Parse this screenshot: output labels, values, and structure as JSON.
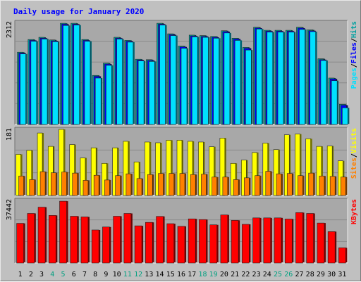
{
  "chart_data": {
    "type": "bar",
    "title": "Daily usage for January 2020",
    "colors": {
      "background": "#c0c0c0",
      "plot_background": "#a8a8a8",
      "hits": "#00a0a0",
      "files": "#0000ff",
      "pages": "#00e0ff",
      "visits": "#ffff00",
      "sites": "#ff8000",
      "kbytes": "#ff0000",
      "title": "#0000ff",
      "weekend_day": "#00a080"
    },
    "categories": [
      "1",
      "2",
      "3",
      "4",
      "5",
      "6",
      "7",
      "8",
      "9",
      "10",
      "11",
      "12",
      "13",
      "14",
      "15",
      "16",
      "17",
      "18",
      "19",
      "20",
      "21",
      "22",
      "23",
      "24",
      "25",
      "26",
      "27",
      "28",
      "29",
      "30",
      "31"
    ],
    "weekend_days": [
      "4",
      "5",
      "11",
      "12",
      "18",
      "19",
      "25",
      "26"
    ],
    "panels": [
      {
        "id": "hits_files_pages",
        "max_label": "2312",
        "ymax": 2312,
        "legend": [
          {
            "text": "Pages",
            "color": "#00e0ff"
          },
          {
            "text": "/",
            "color": "#000000"
          },
          {
            "text": "Files",
            "color": "#0000ff"
          },
          {
            "text": "/",
            "color": "#000000"
          },
          {
            "text": "Hits",
            "color": "#00a0a0"
          }
        ],
        "series": [
          {
            "name": "Hits",
            "color": "#00a0a0",
            "values": [
              1650,
              1940,
              1990,
              1930,
              2310,
              2310,
              1940,
              1120,
              1400,
              1990,
              1920,
              1490,
              1480,
              2310,
              2070,
              1790,
              2040,
              2030,
              2010,
              2140,
              1970,
              1760,
              2220,
              2150,
              2150,
              2150,
              2220,
              2160,
              1500,
              1060,
              460
            ]
          },
          {
            "name": "Files",
            "color": "#0000ff",
            "values": [
              1630,
              1920,
              1970,
              1910,
              2290,
              2290,
              1920,
              1100,
              1380,
              1970,
              1900,
              1470,
              1460,
              2290,
              2050,
              1770,
              2020,
              2010,
              1990,
              2120,
              1950,
              1740,
              2200,
              2130,
              2130,
              2130,
              2200,
              2140,
              1480,
              1040,
              440
            ]
          },
          {
            "name": "Pages",
            "color": "#00e0ff",
            "values": [
              1610,
              1900,
              1950,
              1890,
              2260,
              2270,
              1900,
              1060,
              1350,
              1950,
              1880,
              1450,
              1440,
              2270,
              2030,
              1740,
              2000,
              1990,
              1970,
              2090,
              1920,
              1700,
              2180,
              2110,
              2110,
              2110,
              2170,
              2120,
              1460,
              1000,
              380
            ]
          }
        ]
      },
      {
        "id": "visits_sites",
        "max_label": "181",
        "ymax": 181,
        "legend": [
          {
            "text": "Sites",
            "color": "#ff8000"
          },
          {
            "text": "/",
            "color": "#000000"
          },
          {
            "text": "Visits",
            "color": "#ffff00"
          }
        ],
        "series": [
          {
            "name": "Visits",
            "color": "#ffff00",
            "values": [
              114,
              125,
              173,
              136,
              183,
              141,
              104,
              132,
              89,
              132,
              150,
              93,
              148,
              146,
              153,
              153,
              150,
              148,
              135,
              159,
              89,
              98,
              119,
              145,
              127,
              168,
              170,
              157,
              136,
              137,
              96
            ]
          },
          {
            "name": "Sites",
            "color": "#ff8000",
            "values": [
              54,
              44,
              66,
              63,
              65,
              62,
              42,
              56,
              43,
              55,
              60,
              47,
              58,
              61,
              61,
              61,
              58,
              59,
              51,
              51,
              44,
              49,
              55,
              67,
              60,
              61,
              55,
              62,
              54,
              53,
              51
            ]
          }
        ]
      },
      {
        "id": "kbytes",
        "max_label": "37442",
        "ymax": 37442,
        "legend": [
          {
            "text": "KBytes",
            "color": "#ff0000"
          }
        ],
        "series": [
          {
            "name": "KBytes",
            "color": "#ff0000",
            "values": [
              24000,
              30000,
              33800,
              28800,
              37400,
              28300,
              27900,
              20000,
              21800,
              28300,
              30000,
              22500,
              24600,
              28200,
              23800,
              22200,
              26700,
              26300,
              23100,
              29100,
              25800,
              23400,
              27300,
              27300,
              27300,
              26600,
              30500,
              30000,
              24200,
              19000,
              9200
            ]
          }
        ]
      }
    ]
  }
}
